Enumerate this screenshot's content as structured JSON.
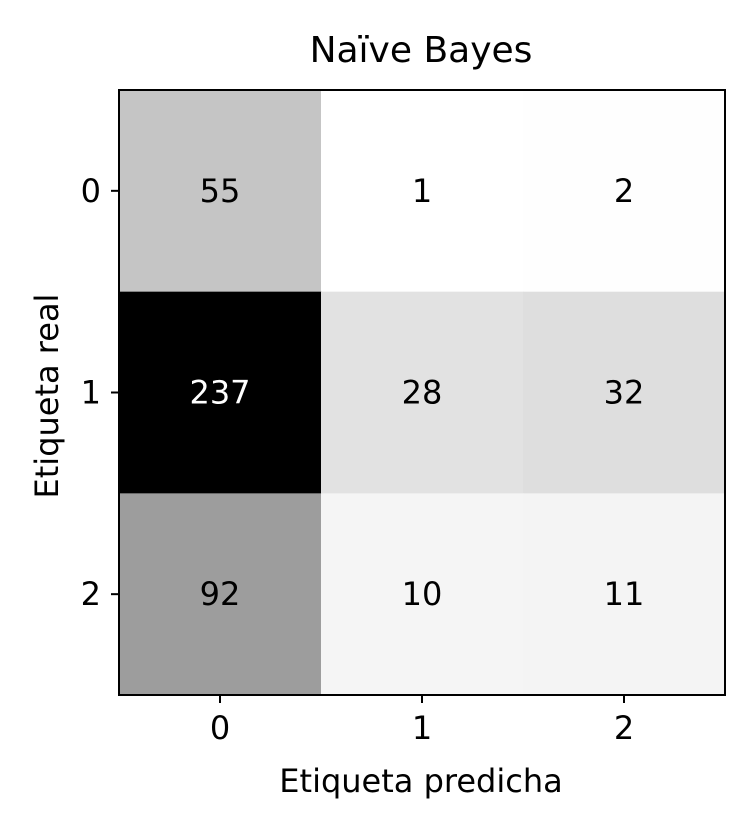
{
  "chart_data": {
    "type": "heatmap",
    "title": "Naïve Bayes",
    "xlabel": "Etiqueta predicha",
    "ylabel": "Etiqueta real",
    "x_categories": [
      "0",
      "1",
      "2"
    ],
    "y_categories": [
      "0",
      "1",
      "2"
    ],
    "values": [
      [
        55,
        1,
        2
      ],
      [
        237,
        28,
        32
      ],
      [
        92,
        10,
        11
      ]
    ],
    "colormap": "greys",
    "color_min": "#ffffff",
    "color_max": "#000000",
    "grid": false
  }
}
